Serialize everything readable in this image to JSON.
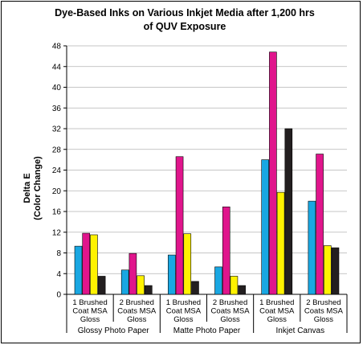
{
  "chart_data": {
    "type": "bar",
    "title_line1": "Dye-Based Inks on Various Inkjet Media after 1,200 hrs",
    "title_line2": "of QUV Exposure",
    "ylabel_line1": "Delta E",
    "ylabel_line2": "(Color Change)",
    "ylim": [
      0,
      48
    ],
    "yticks": [
      "0",
      "4",
      "8",
      "12",
      "16",
      "20",
      "24",
      "28",
      "32",
      "36",
      "40",
      "44",
      "48"
    ],
    "grid": true,
    "legend": "none",
    "groups": [
      "Glossy Photo Paper",
      "Matte Photo Paper",
      "Inkjet Canvas"
    ],
    "categories": [
      [
        "1 Brushed",
        "Coat MSA",
        "Gloss"
      ],
      [
        "2 Brushed",
        "Coats MSA",
        "Gloss"
      ],
      [
        "1 Brushed",
        "Coat MSA",
        "Gloss"
      ],
      [
        "2 Brushed",
        "Coats MSA",
        "Gloss"
      ],
      [
        "1 Brushed",
        "Coat MSA",
        "Gloss"
      ],
      [
        "2 Brushed",
        "Coats MSA",
        "Gloss"
      ]
    ],
    "series": [
      {
        "color": "#19a7e2",
        "values": [
          9.3,
          4.7,
          7.6,
          5.3,
          26.0,
          18.0
        ]
      },
      {
        "color": "#e0158c",
        "values": [
          11.8,
          7.9,
          26.6,
          16.9,
          46.8,
          27.1
        ]
      },
      {
        "color": "#fff200",
        "values": [
          11.5,
          3.6,
          11.7,
          3.5,
          19.7,
          9.4
        ]
      },
      {
        "color": "#231f20",
        "values": [
          3.5,
          1.7,
          2.5,
          1.7,
          32.0,
          9.0
        ]
      }
    ]
  }
}
